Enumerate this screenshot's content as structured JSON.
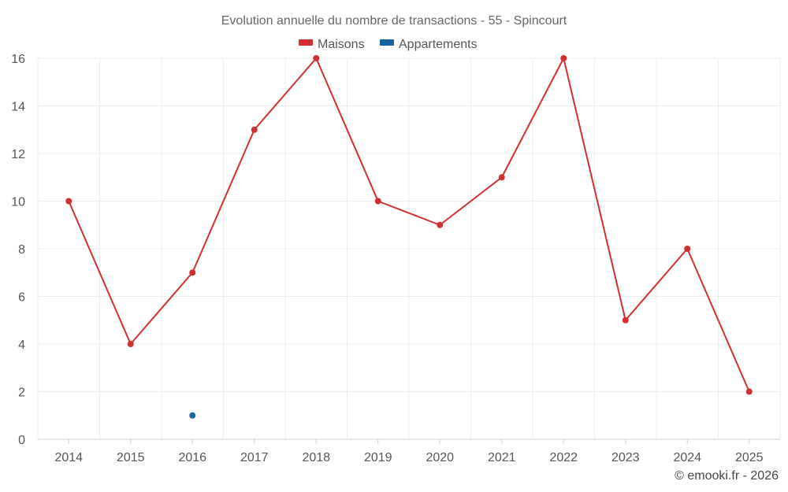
{
  "chart_data": {
    "type": "line",
    "title": "Evolution annuelle du nombre de transactions - 55 - Spincourt",
    "categories": [
      "2014",
      "2015",
      "2016",
      "2017",
      "2018",
      "2019",
      "2020",
      "2021",
      "2022",
      "2023",
      "2024",
      "2025"
    ],
    "series": [
      {
        "name": "Maisons",
        "color": "#d32f2f",
        "values": [
          10,
          4,
          7,
          13,
          16,
          10,
          9,
          11,
          16,
          5,
          8,
          2
        ]
      },
      {
        "name": "Appartements",
        "color": "#1565a0",
        "values": [
          null,
          null,
          1,
          null,
          null,
          null,
          null,
          null,
          null,
          null,
          null,
          null
        ]
      }
    ],
    "ylim": [
      0,
      16
    ],
    "yticks": [
      0,
      2,
      4,
      6,
      8,
      10,
      12,
      14,
      16
    ],
    "grid": true,
    "legend": "top-center",
    "credit": "© emooki.fr - 2026"
  }
}
